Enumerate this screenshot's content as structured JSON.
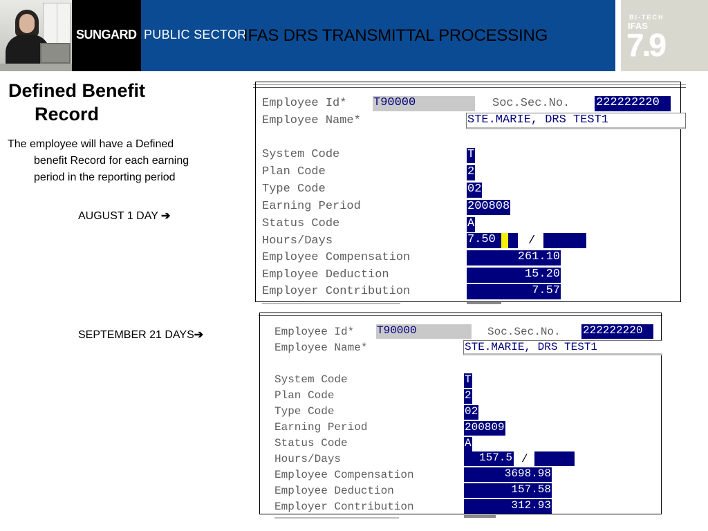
{
  "header": {
    "brand_bold": "SUNGARD",
    "brand_light": "PUBLIC SECTOR",
    "title": "IFAS DRS TRANSMITTAL PROCESSING",
    "badge_top": "BI-TECH",
    "badge_product": "IFAS",
    "badge_version": "7.9",
    "colors": {
      "blue_band": "#0b4b93",
      "black_band": "#000000",
      "badge_bg": "#d9d8cf"
    }
  },
  "slide": {
    "title_line1": "Defined Benefit",
    "title_line2": "Record",
    "desc_line1": "The employee will have a Defined",
    "desc_line2": "benefit Record for each earning",
    "desc_line3": "period in the reporting period",
    "label_august": "AUGUST 1 DAY",
    "label_september": "SEPTEMBER 21 DAYS",
    "arrow": "➔"
  },
  "panel1": {
    "labels": {
      "employee_id": "Employee Id*",
      "ssn": "Soc.Sec.No.",
      "employee_name": "Employee Name*",
      "system_code": "System Code",
      "plan_code": "Plan Code",
      "type_code": "Type Code",
      "earning_period": "Earning Period",
      "status_code": "Status Code",
      "hours_days": "Hours/Days",
      "employee_compensation": "Employee Compensation",
      "employee_deduction": "Employee Deduction",
      "employer_contribution": "Employer Contribution"
    },
    "values": {
      "employee_id": "T90000",
      "ssn": "222222220",
      "employee_name": "STE.MARIE, DRS TEST1",
      "system_code": "T",
      "plan_code": "2",
      "type_code": "02",
      "earning_period": "200808",
      "status_code": "A",
      "hours": "7.50",
      "days_sep": "/",
      "employee_compensation": "261.10",
      "employee_deduction": "15.20",
      "employer_contribution": "7.57"
    }
  },
  "panel2": {
    "labels": {
      "employee_id": "Employee Id*",
      "ssn": "Soc.Sec.No.",
      "employee_name": "Employee Name*",
      "system_code": "System Code",
      "plan_code": "Plan Code",
      "type_code": "Type Code",
      "earning_period": "Earning Period",
      "status_code": "Status Code",
      "hours_days": "Hours/Days",
      "employee_compensation": "Employee Compensation",
      "employee_deduction": "Employee Deduction",
      "employer_contribution": "Employer Contribution"
    },
    "values": {
      "employee_id": "T90000",
      "ssn": "222222220",
      "employee_name": "STE.MARIE, DRS TEST1",
      "system_code": "T",
      "plan_code": "2",
      "type_code": "02",
      "earning_period": "200809",
      "status_code": "A",
      "hours": "157.5",
      "days_sep": "/",
      "employee_compensation": "3698.98",
      "employee_deduction": "157.58",
      "employer_contribution": "312.93"
    }
  }
}
